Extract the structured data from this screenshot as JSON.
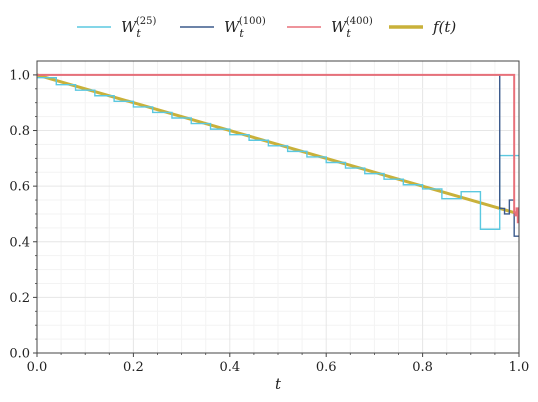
{
  "chart_data": {
    "type": "line",
    "title": "",
    "xlabel": "t",
    "ylabel": "",
    "xlim": [
      0.0,
      1.0
    ],
    "ylim": [
      0.0,
      1.05
    ],
    "xticks": [
      "0.0",
      "0.2",
      "0.4",
      "0.6",
      "0.8",
      "1.0"
    ],
    "yticks": [
      "0.0",
      "0.2",
      "0.4",
      "0.6",
      "0.8",
      "1.0"
    ],
    "grid": true,
    "legend_position": "top",
    "legend": [
      {
        "label": "W_t^(25)",
        "color": "#5bc8e0"
      },
      {
        "label": "W_t^(100)",
        "color": "#3b5a8c"
      },
      {
        "label": "W_t^(400)",
        "color": "#e8707a"
      },
      {
        "label": "f(t)",
        "color": "#c9b13a"
      }
    ],
    "series": [
      {
        "name": "f(t)",
        "color": "#c9b13a",
        "style": "line",
        "x": [
          0.0,
          1.0
        ],
        "y": [
          1.0,
          0.5
        ]
      },
      {
        "name": "W_t^(25)",
        "color": "#5bc8e0",
        "style": "step",
        "x": [
          0.0,
          0.04,
          0.08,
          0.12,
          0.16,
          0.2,
          0.24,
          0.28,
          0.32,
          0.36,
          0.4,
          0.44,
          0.48,
          0.52,
          0.56,
          0.6,
          0.64,
          0.68,
          0.72,
          0.76,
          0.8,
          0.84,
          0.88,
          0.92,
          0.96,
          1.0
        ],
        "y": [
          0.99,
          0.965,
          0.945,
          0.925,
          0.905,
          0.885,
          0.865,
          0.845,
          0.825,
          0.805,
          0.785,
          0.765,
          0.745,
          0.725,
          0.705,
          0.685,
          0.665,
          0.645,
          0.625,
          0.605,
          0.59,
          0.555,
          0.58,
          0.445,
          0.71,
          0.71
        ]
      },
      {
        "name": "W_t^(100)",
        "color": "#3b5a8c",
        "style": "step",
        "x": [
          0.0,
          0.96,
          0.97,
          0.98,
          0.99,
          1.0
        ],
        "y": [
          1.0,
          0.52,
          0.5,
          0.55,
          0.42,
          0.715
        ]
      },
      {
        "name": "W_t^(400)",
        "color": "#e8707a",
        "style": "step",
        "x": [
          0.0,
          0.99,
          0.9925,
          0.995,
          0.9975,
          1.0
        ],
        "y": [
          1.0,
          0.505,
          0.495,
          0.52,
          0.47,
          0.54
        ]
      }
    ]
  }
}
